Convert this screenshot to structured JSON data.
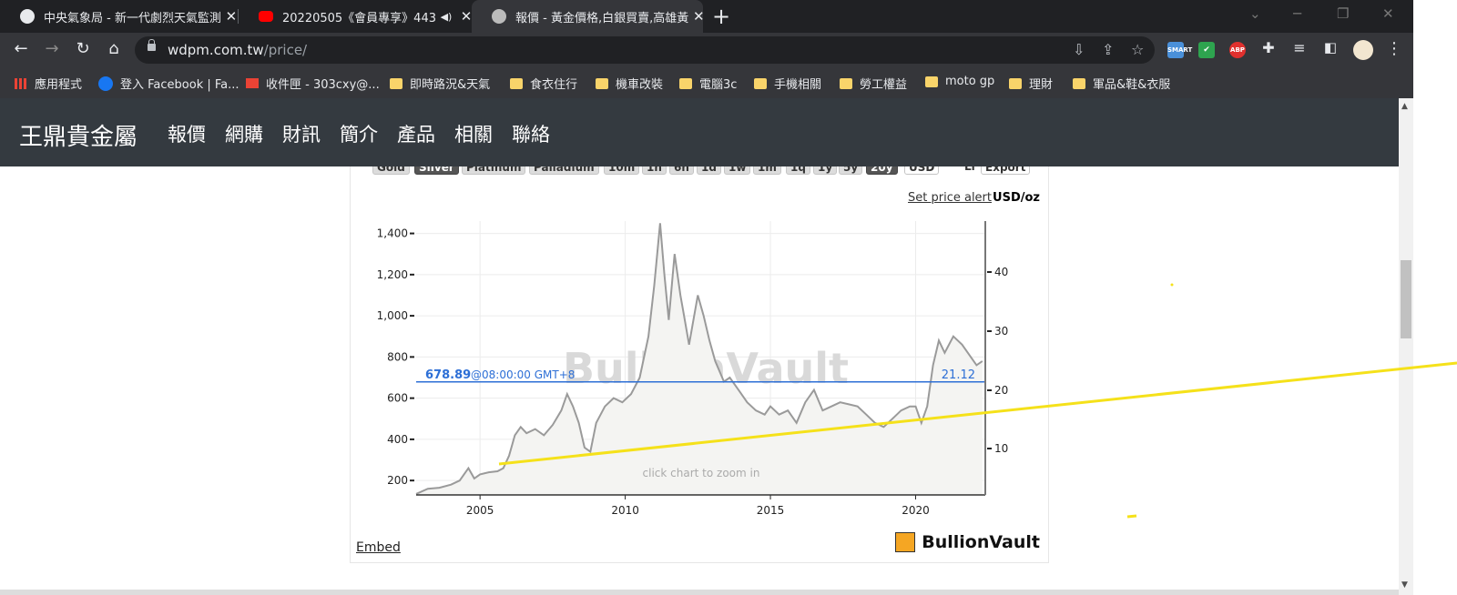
{
  "browser": {
    "tabs": [
      {
        "title": "中央氣象局 - 新一代劇烈天氣監測",
        "favicon": "globe-icon"
      },
      {
        "title": "20220505《會員專享》443",
        "favicon": "youtube-icon"
      },
      {
        "title": "報價 - 黃金價格,白銀買賣,高雄黃",
        "favicon": "site-icon"
      }
    ],
    "url_host": "wdpm.com.tw",
    "url_path": "/price/",
    "extensions": [
      {
        "name": "smart-extension-icon",
        "label": "SMART",
        "color": "#4a90d9"
      },
      {
        "name": "shield-extension-icon",
        "label": "✔",
        "color": "#2ea44f"
      },
      {
        "name": "adblock-extension-icon",
        "label": "ABP",
        "color": "#e0302e"
      }
    ],
    "bookmarks": [
      {
        "label": "應用程式",
        "icon": "apps-grid-icon"
      },
      {
        "label": "登入 Facebook | Fa...",
        "icon": "facebook-icon"
      },
      {
        "label": "收件匣 - 303cxy@...",
        "icon": "gmail-icon"
      },
      {
        "label": "即時路況&天氣",
        "icon": "folder-icon"
      },
      {
        "label": "食衣住行",
        "icon": "folder-icon"
      },
      {
        "label": "機車改裝",
        "icon": "folder-icon"
      },
      {
        "label": "電腦3c",
        "icon": "folder-icon"
      },
      {
        "label": "手機相關",
        "icon": "folder-icon"
      },
      {
        "label": "勞工權益",
        "icon": "folder-icon"
      },
      {
        "label": "moto gp",
        "icon": "folder-icon"
      },
      {
        "label": "理財",
        "icon": "folder-icon"
      },
      {
        "label": "軍品&鞋&衣服",
        "icon": "folder-icon"
      }
    ]
  },
  "site": {
    "brand": "王鼎貴金屬",
    "nav": [
      "報價",
      "網購",
      "財訊",
      "簡介",
      "產品",
      "相關",
      "聯絡"
    ]
  },
  "widget": {
    "metals": [
      "Gold",
      "Silver",
      "Platinum",
      "Palladium"
    ],
    "selected_metal": "Silver",
    "ranges": [
      "10m",
      "1h",
      "6h",
      "1d",
      "1w",
      "1m",
      "1q",
      "1y",
      "5y",
      "20y"
    ],
    "selected_range": "20y",
    "currency": "USD",
    "currency_partial": "Li",
    "export_label": "Export",
    "set_price_alert": "Set price alert",
    "unit": "USD/oz",
    "embed": "Embed",
    "logo_text": "BullionVault",
    "watermark": "BullionVault",
    "zoom_hint": "click chart to zoom in",
    "current_usd": "678.89",
    "current_time": "@08:00:00 GMT+8",
    "current_right": "21.12"
  },
  "chart_data": {
    "type": "line",
    "title": "",
    "xlabel": "",
    "ylabel": "",
    "x_ticks": [
      2005,
      2010,
      2015,
      2020
    ],
    "y_left_ticks": [
      200,
      400,
      600,
      800,
      1000,
      1200,
      1400
    ],
    "y_right_ticks": [
      10,
      20,
      30,
      40
    ],
    "xlim": [
      2002.8,
      2022.4
    ],
    "ylim_left": [
      130,
      1460
    ],
    "reference_value": 678.89,
    "series": [
      {
        "x": [
          2002.8,
          2003.2,
          2003.6,
          2004.0,
          2004.3,
          2004.6,
          2004.8,
          2005.0,
          2005.3,
          2005.6,
          2005.8,
          2006.0,
          2006.2,
          2006.4,
          2006.6,
          2006.9,
          2007.2,
          2007.5,
          2007.8,
          2008.0,
          2008.2,
          2008.4,
          2008.6,
          2008.8,
          2009.0,
          2009.3,
          2009.6,
          2009.9,
          2010.2,
          2010.5,
          2010.8,
          2011.0,
          2011.2,
          2011.35,
          2011.5,
          2011.7,
          2011.9,
          2012.0,
          2012.2,
          2012.5,
          2012.7,
          2012.9,
          2013.1,
          2013.4,
          2013.6,
          2013.9,
          2014.2,
          2014.5,
          2014.8,
          2015.0,
          2015.3,
          2015.6,
          2015.9,
          2016.2,
          2016.5,
          2016.8,
          2017.1,
          2017.4,
          2017.7,
          2018.0,
          2018.3,
          2018.6,
          2018.9,
          2019.2,
          2019.5,
          2019.8,
          2020.0,
          2020.2,
          2020.4,
          2020.6,
          2020.8,
          2021.0,
          2021.3,
          2021.6,
          2021.9,
          2022.1,
          2022.3
        ],
        "values": [
          135,
          160,
          165,
          180,
          200,
          260,
          210,
          230,
          240,
          245,
          260,
          320,
          420,
          460,
          430,
          450,
          420,
          470,
          540,
          620,
          560,
          480,
          360,
          340,
          480,
          560,
          600,
          580,
          620,
          700,
          900,
          1150,
          1450,
          1200,
          980,
          1300,
          1100,
          1020,
          860,
          1100,
          1000,
          880,
          780,
          680,
          700,
          640,
          580,
          540,
          520,
          560,
          520,
          540,
          480,
          580,
          640,
          540,
          560,
          580,
          570,
          560,
          520,
          480,
          460,
          500,
          540,
          560,
          560,
          480,
          560,
          760,
          880,
          820,
          900,
          860,
          800,
          760,
          780
        ]
      }
    ]
  }
}
